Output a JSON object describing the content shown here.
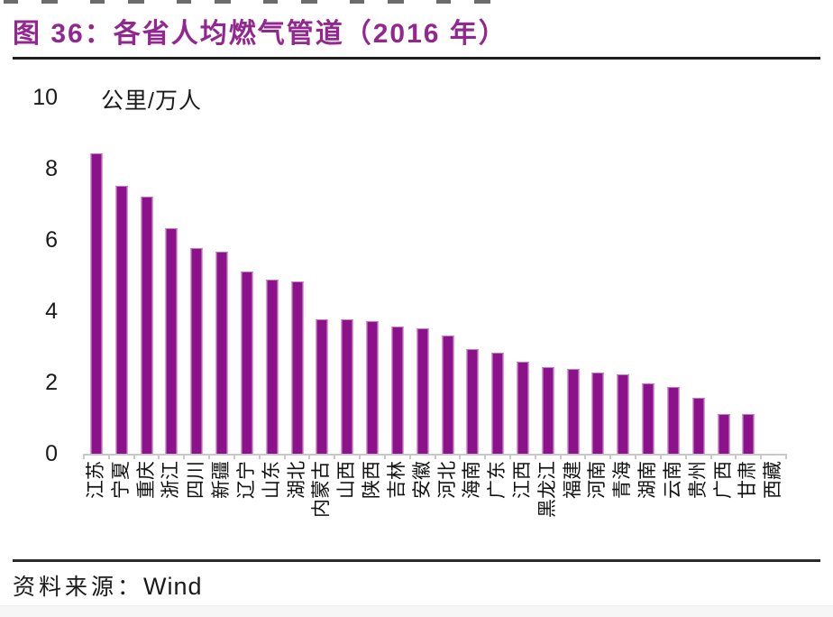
{
  "page": {
    "title": "图 36：各省人均燃气管道（2016 年）",
    "source_prefix": "资料来源：",
    "source_name": "Wind"
  },
  "chart_data": {
    "type": "bar",
    "title": "各省人均燃气管道（2016 年）",
    "unit_label": "公里/万人",
    "xlabel": "",
    "ylabel": "公里/万人",
    "ylim": [
      0,
      10
    ],
    "yticks": [
      0,
      2,
      4,
      6,
      8,
      10
    ],
    "grid": false,
    "legend_position": "none",
    "bar_color": "#8C128C",
    "title_color": "#92278F",
    "axis_line_color": "#c9c9c9",
    "categories": [
      "江苏",
      "宁夏",
      "重庆",
      "浙江",
      "四川",
      "新疆",
      "辽宁",
      "山东",
      "湖北",
      "内蒙古",
      "山西",
      "陕西",
      "吉林",
      "安徽",
      "河北",
      "海南",
      "广东",
      "江西",
      "黑龙江",
      "福建",
      "河南",
      "青海",
      "湖南",
      "云南",
      "贵州",
      "广西",
      "甘肃",
      "西藏"
    ],
    "values": [
      8.4,
      7.5,
      7.2,
      6.3,
      5.75,
      5.65,
      5.1,
      4.85,
      4.8,
      3.75,
      3.75,
      3.7,
      3.55,
      3.5,
      3.3,
      2.9,
      2.8,
      2.55,
      2.4,
      2.35,
      2.25,
      2.2,
      1.95,
      1.85,
      1.55,
      1.1,
      1.1,
      0
    ]
  }
}
